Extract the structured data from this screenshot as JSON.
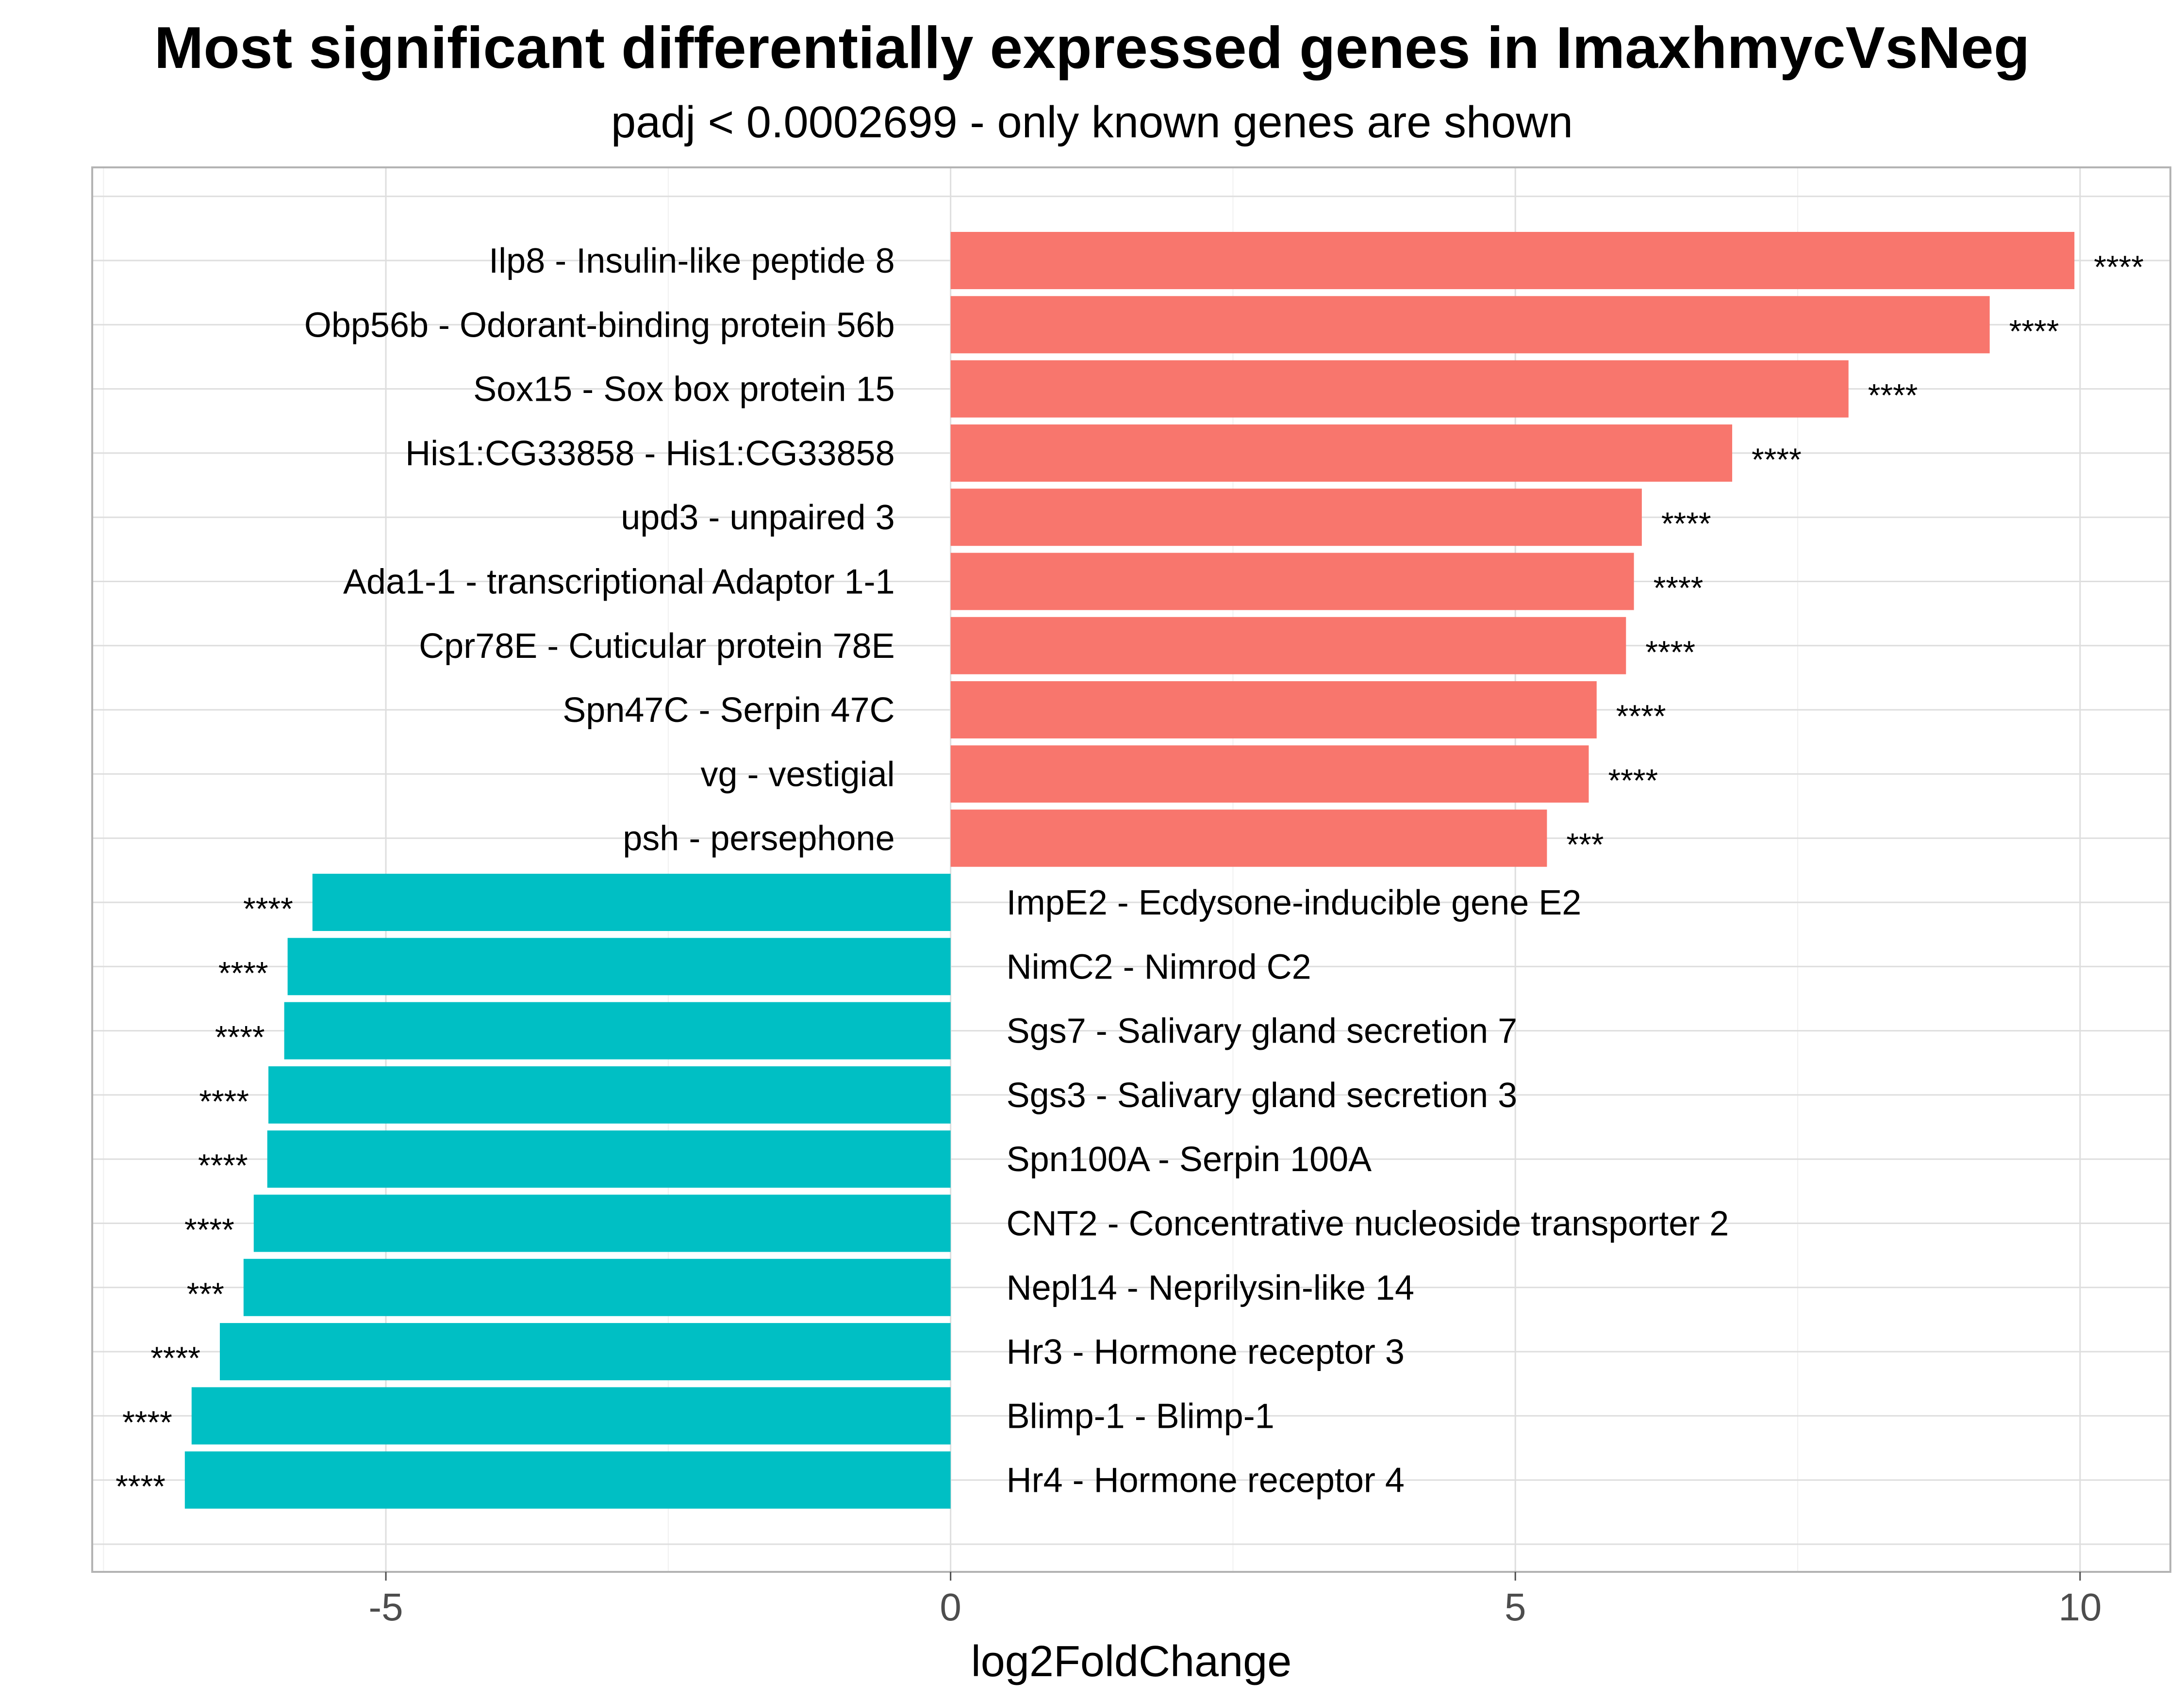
{
  "chart_data": {
    "type": "bar",
    "orientation": "horizontal",
    "title": "Most significant differentially expressed genes in ImaxhmycVsNeg",
    "subtitle": "padj < 0.0002699 - only known genes are shown",
    "xlabel": "log2FoldChange",
    "ylabel": "",
    "xlim": [
      -7.6,
      10.8
    ],
    "x_ticks": [
      -5,
      0,
      5,
      10
    ],
    "x_tick_labels": [
      "-5",
      "0",
      "5",
      "10"
    ],
    "grid": true,
    "legend": "none",
    "colors": {
      "up": "#F8766D",
      "down": "#00BFC4"
    },
    "bars": [
      {
        "label": "Ilp8 - Insulin-like peptide 8",
        "value": 9.95,
        "significance": "****"
      },
      {
        "label": "Obp56b - Odorant-binding protein 56b",
        "value": 9.2,
        "significance": "****"
      },
      {
        "label": "Sox15 - Sox box protein 15",
        "value": 7.95,
        "significance": "****"
      },
      {
        "label": "His1:CG33858 - His1:CG33858",
        "value": 6.92,
        "significance": "****"
      },
      {
        "label": "upd3 - unpaired 3",
        "value": 6.12,
        "significance": "****"
      },
      {
        "label": "Ada1-1 - transcriptional Adaptor 1-1",
        "value": 6.05,
        "significance": "****"
      },
      {
        "label": "Cpr78E - Cuticular protein 78E",
        "value": 5.98,
        "significance": "****"
      },
      {
        "label": "Spn47C - Serpin 47C",
        "value": 5.72,
        "significance": "****"
      },
      {
        "label": "vg - vestigial",
        "value": 5.65,
        "significance": "****"
      },
      {
        "label": "psh - persephone",
        "value": 5.28,
        "significance": "***"
      },
      {
        "label": "ImpE2 - Ecdysone-inducible gene E2",
        "value": -5.65,
        "significance": "****"
      },
      {
        "label": "NimC2 - Nimrod C2",
        "value": -5.87,
        "significance": "****"
      },
      {
        "label": "Sgs7 - Salivary gland secretion 7",
        "value": -5.9,
        "significance": "****"
      },
      {
        "label": "Sgs3 - Salivary gland secretion 3",
        "value": -6.04,
        "significance": "****"
      },
      {
        "label": "Spn100A - Serpin 100A",
        "value": -6.05,
        "significance": "****"
      },
      {
        "label": "CNT2 - Concentrative nucleoside transporter 2",
        "value": -6.17,
        "significance": "****"
      },
      {
        "label": "Nepl14 - Neprilysin-like 14",
        "value": -6.26,
        "significance": "***"
      },
      {
        "label": "Hr3 - Hormone receptor 3",
        "value": -6.47,
        "significance": "****"
      },
      {
        "label": "Blimp-1 - Blimp-1",
        "value": -6.72,
        "significance": "****"
      },
      {
        "label": "Hr4 - Hormone receptor 4",
        "value": -6.78,
        "significance": "****"
      }
    ]
  }
}
